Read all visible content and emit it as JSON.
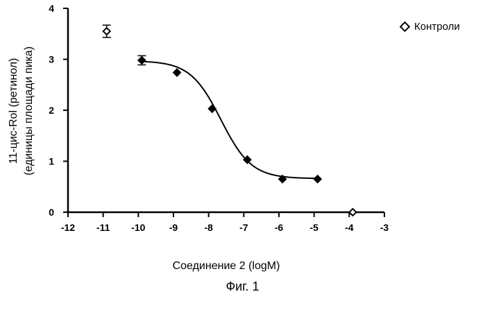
{
  "chart_data": {
    "type": "scatter",
    "ylabel_line1": "11-цис-Rol (ретинол)",
    "ylabel_line2": "(единицы площади пика)",
    "xlabel": "Соединение 2 (logM)",
    "xlim": [
      -12,
      -3
    ],
    "ylim": [
      0,
      4
    ],
    "x_ticks": [
      -12,
      -11,
      -10,
      -9,
      -8,
      -7,
      -6,
      -5,
      -4,
      -3
    ],
    "y_ticks": [
      0,
      1,
      2,
      3,
      4
    ],
    "grid": false,
    "legend_position": "top-right",
    "series": [
      {
        "name": "Контроли",
        "marker": "open-diamond",
        "x": [
          -10.9,
          -3.9
        ],
        "y": [
          3.55,
          0.0
        ],
        "error": [
          0.12,
          0.0
        ]
      },
      {
        "marker": "filled-diamond",
        "x": [
          -9.9,
          -8.9,
          -7.9,
          -6.9,
          -5.9,
          -4.9
        ],
        "y": [
          2.98,
          2.74,
          2.03,
          1.03,
          0.65,
          0.65
        ],
        "error": [
          0.09,
          0.0,
          0.0,
          0.0,
          0.0,
          0.0
        ]
      }
    ],
    "fit_curve": {
      "type": "sigmoid",
      "bottom": 0.66,
      "top": 2.97,
      "log_ec50": -7.65,
      "hill": 1.0,
      "x_range": [
        -9.9,
        -4.9
      ]
    }
  },
  "caption": "Фиг. 1"
}
